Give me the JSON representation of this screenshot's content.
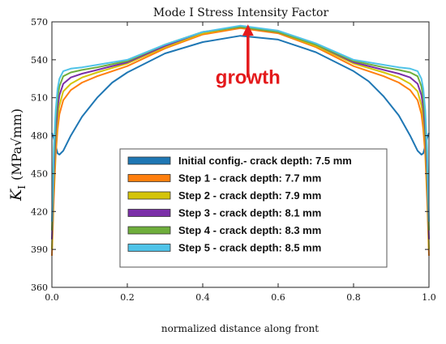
{
  "chart_data": {
    "type": "line",
    "title": "Mode I Stress Intensity Factor",
    "xlabel": "normalized distance along front",
    "ylabel": "K_I (MPa√mm)",
    "ylabel_symbol": "K",
    "ylabel_subscript": "I",
    "ylabel_unit": "(MPa√mm)",
    "xlim": [
      0,
      1
    ],
    "ylim": [
      360,
      570
    ],
    "xticks": [
      0.0,
      0.2,
      0.4,
      0.6,
      0.8,
      1.0
    ],
    "xtick_labels": [
      "0.0",
      "0.2",
      "0.4",
      "0.6",
      "0.8",
      "1.0"
    ],
    "yticks": [
      360,
      390,
      420,
      450,
      480,
      510,
      540,
      570
    ],
    "ytick_labels": [
      "360",
      "390",
      "420",
      "450",
      "480",
      "510",
      "540",
      "570"
    ],
    "grid": false,
    "legend_position": "bottom-center",
    "annotation": {
      "text": "growth",
      "color": "#e41a1c",
      "arrow_x": 0.52,
      "arrow_from_y": 526,
      "arrow_to_y": 568
    },
    "series": [
      {
        "name": "Initial config.- crack depth: 7.5 mm",
        "color": "#1f77b4",
        "x": [
          0.0,
          0.005,
          0.01,
          0.015,
          0.02,
          0.03,
          0.05,
          0.08,
          0.12,
          0.16,
          0.2,
          0.3,
          0.4,
          0.5,
          0.6,
          0.7,
          0.8,
          0.84,
          0.88,
          0.92,
          0.95,
          0.97,
          0.98,
          0.985,
          0.99,
          0.995,
          1.0
        ],
        "y": [
          482,
          478,
          472,
          466,
          465,
          468,
          480,
          495,
          510,
          522,
          530,
          545,
          554,
          559,
          556,
          546,
          531,
          523,
          511,
          496,
          480,
          468,
          465,
          466,
          472,
          478,
          482
        ]
      },
      {
        "name": "Step 1 - crack depth: 7.7 mm",
        "color": "#ff7f0e",
        "x": [
          0.0,
          0.005,
          0.01,
          0.015,
          0.02,
          0.03,
          0.05,
          0.08,
          0.12,
          0.2,
          0.3,
          0.4,
          0.5,
          0.6,
          0.7,
          0.8,
          0.88,
          0.92,
          0.95,
          0.97,
          0.98,
          0.985,
          0.99,
          0.995,
          1.0
        ],
        "y": [
          385,
          430,
          465,
          485,
          497,
          508,
          516,
          522,
          527,
          535,
          549,
          560,
          565,
          561,
          550,
          535,
          527,
          522,
          516,
          508,
          497,
          485,
          465,
          430,
          385
        ]
      },
      {
        "name": "Step 2 - crack depth: 7.9 mm",
        "color": "#d4c40a",
        "x": [
          0.0,
          0.005,
          0.01,
          0.015,
          0.02,
          0.03,
          0.05,
          0.08,
          0.12,
          0.2,
          0.3,
          0.4,
          0.5,
          0.6,
          0.7,
          0.8,
          0.88,
          0.92,
          0.95,
          0.97,
          0.98,
          0.985,
          0.99,
          0.995,
          1.0
        ],
        "y": [
          390,
          440,
          475,
          494,
          504,
          515,
          521,
          526,
          530,
          537,
          550,
          561,
          566,
          562,
          551,
          537,
          530,
          526,
          521,
          515,
          504,
          494,
          475,
          440,
          390
        ]
      },
      {
        "name": "Step 3 - crack depth: 8.1 mm",
        "color": "#7b2fa8",
        "x": [
          0.0,
          0.005,
          0.01,
          0.015,
          0.02,
          0.03,
          0.05,
          0.08,
          0.12,
          0.2,
          0.3,
          0.4,
          0.5,
          0.6,
          0.7,
          0.8,
          0.88,
          0.92,
          0.95,
          0.97,
          0.98,
          0.985,
          0.99,
          0.995,
          1.0
        ],
        "y": [
          398,
          450,
          483,
          502,
          512,
          521,
          526,
          529,
          532,
          538,
          551,
          562,
          566,
          562,
          552,
          538,
          532,
          529,
          526,
          521,
          512,
          502,
          483,
          450,
          398
        ]
      },
      {
        "name": "Step 4 - crack depth: 8.3 mm",
        "color": "#6fae3c",
        "x": [
          0.0,
          0.005,
          0.01,
          0.015,
          0.02,
          0.03,
          0.05,
          0.08,
          0.12,
          0.2,
          0.3,
          0.4,
          0.5,
          0.6,
          0.7,
          0.8,
          0.88,
          0.92,
          0.95,
          0.97,
          0.98,
          0.985,
          0.99,
          0.995,
          1.0
        ],
        "y": [
          405,
          460,
          492,
          510,
          519,
          527,
          530,
          532,
          534,
          539,
          552,
          562,
          566,
          562,
          552,
          539,
          534,
          532,
          530,
          527,
          519,
          510,
          492,
          460,
          405
        ]
      },
      {
        "name": "Step 5 - crack depth: 8.5 mm",
        "color": "#4fc3e8",
        "x": [
          0.0,
          0.005,
          0.01,
          0.015,
          0.02,
          0.03,
          0.05,
          0.08,
          0.12,
          0.2,
          0.3,
          0.4,
          0.5,
          0.6,
          0.7,
          0.8,
          0.88,
          0.92,
          0.95,
          0.97,
          0.98,
          0.985,
          0.99,
          0.995,
          1.0
        ],
        "y": [
          412,
          470,
          500,
          517,
          525,
          531,
          533,
          534,
          536,
          540,
          552,
          562,
          567,
          563,
          553,
          540,
          536,
          534,
          533,
          531,
          525,
          517,
          500,
          470,
          412
        ]
      }
    ]
  }
}
